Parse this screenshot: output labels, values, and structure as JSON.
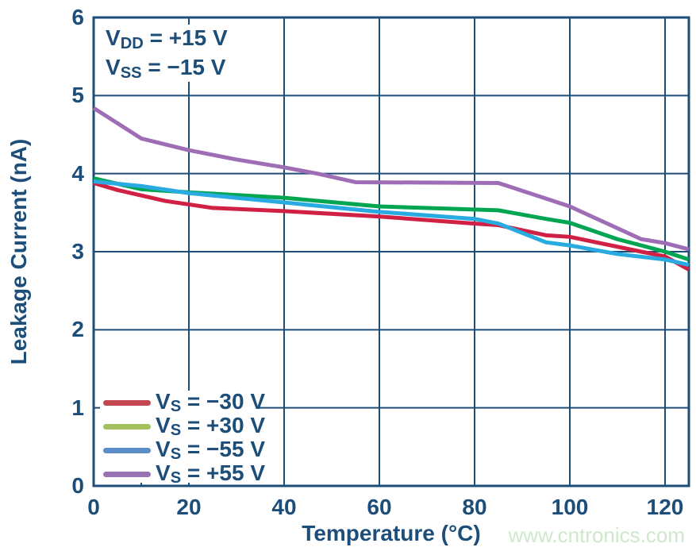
{
  "chart_data": {
    "type": "line",
    "xlabel": "Temperature (°C)",
    "ylabel": "Leakage Current (nA)",
    "xlim": [
      0,
      125
    ],
    "ylim": [
      0,
      6
    ],
    "x_ticks": [
      0,
      20,
      40,
      60,
      80,
      100,
      120
    ],
    "y_ticks": [
      0,
      1,
      2,
      3,
      4,
      5,
      6
    ],
    "x_minor_ticks": [
      10
    ],
    "grid": true,
    "legend_position": "lower-left",
    "annotation": {
      "lines": [
        {
          "pre": "V",
          "sub": "DD",
          "post": " = +15 V"
        },
        {
          "pre": "V",
          "sub": "SS",
          "post": " = −15 V"
        }
      ]
    },
    "series": [
      {
        "name": "VS = −30 V",
        "label": {
          "pre": "V",
          "sub": "S",
          "post": " = −30 V"
        },
        "line_color": "#d02044",
        "swatch_color": "#c2474f",
        "points": [
          [
            0,
            3.88
          ],
          [
            5,
            3.79
          ],
          [
            15,
            3.65
          ],
          [
            25,
            3.56
          ],
          [
            40,
            3.52
          ],
          [
            60,
            3.45
          ],
          [
            80,
            3.36
          ],
          [
            85,
            3.34
          ],
          [
            95,
            3.21
          ],
          [
            100,
            3.19
          ],
          [
            115,
            3.0
          ],
          [
            120,
            2.94
          ],
          [
            125,
            2.77
          ]
        ]
      },
      {
        "name": "VS = +30 V",
        "label": {
          "pre": "V",
          "sub": "S",
          "post": " = +30 V"
        },
        "line_color": "#00a551",
        "swatch_color": "#a4c05f",
        "points": [
          [
            0,
            3.94
          ],
          [
            10,
            3.8
          ],
          [
            20,
            3.76
          ],
          [
            40,
            3.69
          ],
          [
            60,
            3.58
          ],
          [
            85,
            3.53
          ],
          [
            95,
            3.42
          ],
          [
            100,
            3.37
          ],
          [
            110,
            3.16
          ],
          [
            120,
            3.0
          ],
          [
            125,
            2.9
          ]
        ]
      },
      {
        "name": "VS = −55 V",
        "label": {
          "pre": "V",
          "sub": "S",
          "post": " = −55 V"
        },
        "line_color": "#29aae1",
        "swatch_color": "#5b8dc8",
        "points": [
          [
            0,
            3.9
          ],
          [
            10,
            3.84
          ],
          [
            20,
            3.75
          ],
          [
            40,
            3.63
          ],
          [
            60,
            3.51
          ],
          [
            80,
            3.42
          ],
          [
            85,
            3.36
          ],
          [
            95,
            3.12
          ],
          [
            100,
            3.08
          ],
          [
            110,
            2.97
          ],
          [
            120,
            2.9
          ],
          [
            125,
            2.83
          ]
        ]
      },
      {
        "name": "VS = +55 V",
        "label": {
          "pre": "V",
          "sub": "S",
          "post": " = +55 V"
        },
        "line_color": "#9e6db5",
        "swatch_color": "#9673b2",
        "points": [
          [
            0,
            4.84
          ],
          [
            10,
            4.45
          ],
          [
            20,
            4.3
          ],
          [
            30,
            4.18
          ],
          [
            40,
            4.08
          ],
          [
            47,
            4.0
          ],
          [
            55,
            3.89
          ],
          [
            85,
            3.88
          ],
          [
            100,
            3.58
          ],
          [
            115,
            3.16
          ],
          [
            120,
            3.11
          ],
          [
            125,
            3.03
          ]
        ]
      }
    ]
  },
  "watermark": {
    "text": "www.cntronics.com",
    "color": "#cde8cd"
  },
  "colors": {
    "axis": "#1d4e79",
    "grid": "#1d4e79",
    "text": "#1d4e79",
    "background": "#ffffff"
  }
}
